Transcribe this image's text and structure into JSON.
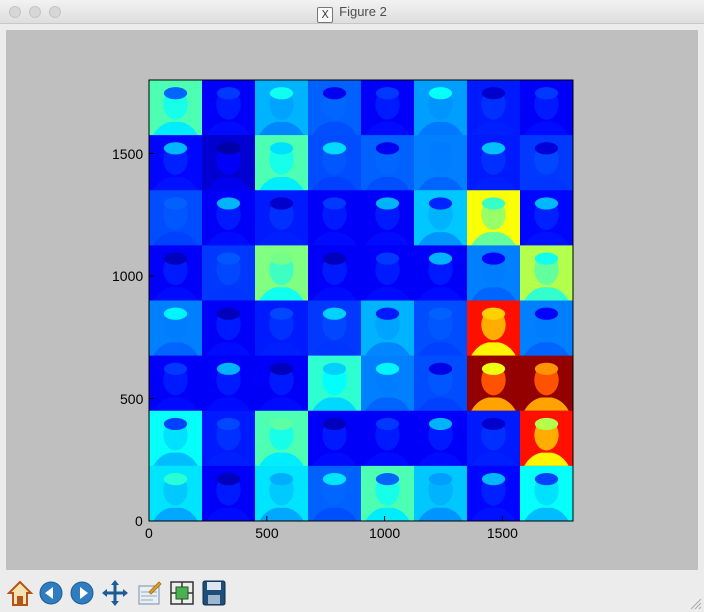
{
  "window": {
    "title": "Figure 2"
  },
  "toolbar": {
    "buttons": [
      {
        "name": "home-icon"
      },
      {
        "name": "back-icon"
      },
      {
        "name": "forward-icon"
      },
      {
        "name": "pan-icon"
      },
      {
        "name": "zoom-icon"
      },
      {
        "name": "configure-subplots-icon"
      },
      {
        "name": "save-icon"
      }
    ]
  },
  "colors": {
    "plot_background": "#bfbfbf",
    "colormap": "jet"
  },
  "chart_data": {
    "type": "heatmap",
    "title": "",
    "xlabel": "",
    "ylabel": "",
    "xlim": [
      0,
      1800
    ],
    "ylim": [
      1800,
      0
    ],
    "grid": false,
    "x_ticks": [
      0,
      500,
      1000,
      1500
    ],
    "y_ticks": [
      0,
      500,
      1000,
      1500
    ],
    "x_tick_labels": [
      "0",
      "500",
      "1000",
      "1500"
    ],
    "y_tick_labels": [
      "0",
      "500",
      "1000",
      "1500"
    ],
    "description_grid": [
      8,
      8
    ],
    "tile_levels": [
      [
        0.45,
        0.12,
        0.3,
        0.22,
        0.12,
        0.28,
        0.15,
        0.12
      ],
      [
        0.13,
        0.08,
        0.45,
        0.2,
        0.22,
        0.25,
        0.15,
        0.18
      ],
      [
        0.2,
        0.12,
        0.15,
        0.12,
        0.12,
        0.32,
        0.62,
        0.13
      ],
      [
        0.12,
        0.18,
        0.5,
        0.12,
        0.12,
        0.12,
        0.25,
        0.55
      ],
      [
        0.25,
        0.12,
        0.15,
        0.18,
        0.3,
        0.2,
        0.86,
        0.25
      ],
      [
        0.12,
        0.12,
        0.12,
        0.42,
        0.25,
        0.2,
        0.98,
        0.98
      ],
      [
        0.38,
        0.15,
        0.45,
        0.12,
        0.12,
        0.12,
        0.15,
        0.86
      ],
      [
        0.35,
        0.12,
        0.35,
        0.22,
        0.45,
        0.32,
        0.13,
        0.38
      ]
    ]
  }
}
